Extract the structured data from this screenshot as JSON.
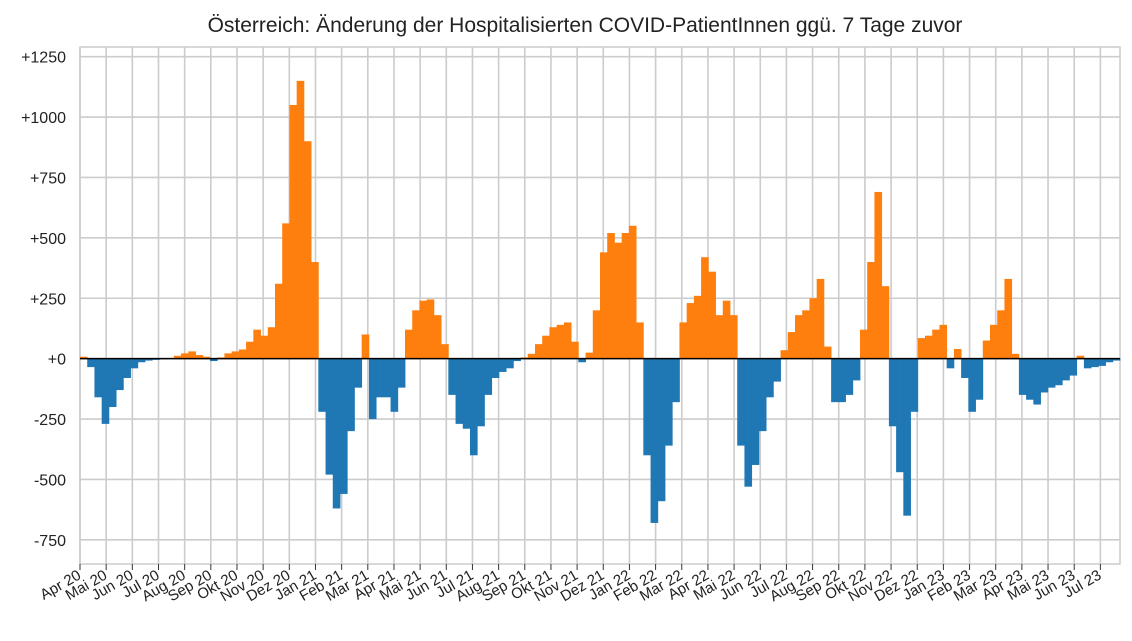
{
  "chart_data": {
    "type": "bar",
    "title": "Österreich: Änderung der Hospitalisierten COVID-PatientInnen ggü. 7 Tage zuvor",
    "xlabel": "",
    "ylabel": "",
    "ylim": [
      -850,
      1290
    ],
    "yticks": [
      {
        "value": 1250,
        "label": "+1250"
      },
      {
        "value": 1000,
        "label": "+1000"
      },
      {
        "value": 750,
        "label": "+750"
      },
      {
        "value": 500,
        "label": "+500"
      },
      {
        "value": 250,
        "label": "+250"
      },
      {
        "value": 0,
        "label": "+0"
      },
      {
        "value": -250,
        "label": "-250"
      },
      {
        "value": -500,
        "label": "-500"
      },
      {
        "value": -750,
        "label": "-750"
      }
    ],
    "xticks": [
      "Apr 20",
      "Mai 20",
      "Jun 20",
      "Jul 20",
      "Aug 20",
      "Sep 20",
      "Okt 20",
      "Nov 20",
      "Dez 20",
      "Jan 21",
      "Feb 21",
      "Mar 21",
      "Apr 21",
      "Mai 21",
      "Jun 21",
      "Jul 21",
      "Aug 21",
      "Sep 21",
      "Okt 21",
      "Nov 21",
      "Dez 21",
      "Jan 22",
      "Feb 22",
      "Mar 22",
      "Apr 22",
      "Mai 22",
      "Jun 22",
      "Jul 22",
      "Aug 22",
      "Sep 22",
      "Okt 22",
      "Nov 22",
      "Dez 22",
      "Jan 23",
      "Feb 23",
      "Mar 23",
      "Apr 23",
      "Mai 23",
      "Jun 23",
      "Jul 23"
    ],
    "grid": true,
    "colors": {
      "positive": "#ff7f0e",
      "negative": "#1f77b4",
      "zero_line": "#000000",
      "grid": "#cccccc"
    },
    "unit": "weekly",
    "series": [
      {
        "values": [
          8,
          -35,
          -160,
          -270,
          -200,
          -130,
          -80,
          -40,
          -15,
          -8,
          -5,
          -3,
          3,
          12,
          22,
          30,
          15,
          8,
          -10,
          5,
          22,
          30,
          38,
          70,
          120,
          95,
          130,
          310,
          560,
          1050,
          1150,
          900,
          400,
          -220,
          -480,
          -620,
          -560,
          -300,
          -120,
          100,
          -250,
          -160,
          -160,
          -220,
          -120,
          120,
          200,
          240,
          245,
          180,
          60,
          -150,
          -270,
          -290,
          -400,
          -280,
          -150,
          -80,
          -55,
          -40,
          -10,
          5,
          20,
          60,
          95,
          130,
          140,
          150,
          70,
          -15,
          25,
          200,
          440,
          520,
          480,
          520,
          550,
          150,
          -400,
          -680,
          -590,
          -360,
          -180,
          150,
          230,
          260,
          420,
          360,
          180,
          240,
          180,
          -360,
          -530,
          -440,
          -300,
          -160,
          -95,
          35,
          110,
          180,
          200,
          250,
          330,
          50,
          -180,
          -180,
          -150,
          -90,
          120,
          400,
          690,
          300,
          -280,
          -470,
          -650,
          -220,
          85,
          95,
          120,
          140,
          -40,
          40,
          -80,
          -220,
          -170,
          75,
          140,
          200,
          330,
          20,
          -150,
          -170,
          -190,
          -140,
          -120,
          -110,
          -90,
          -70,
          12,
          -40,
          -35,
          -30,
          -15,
          -8
        ]
      }
    ]
  }
}
